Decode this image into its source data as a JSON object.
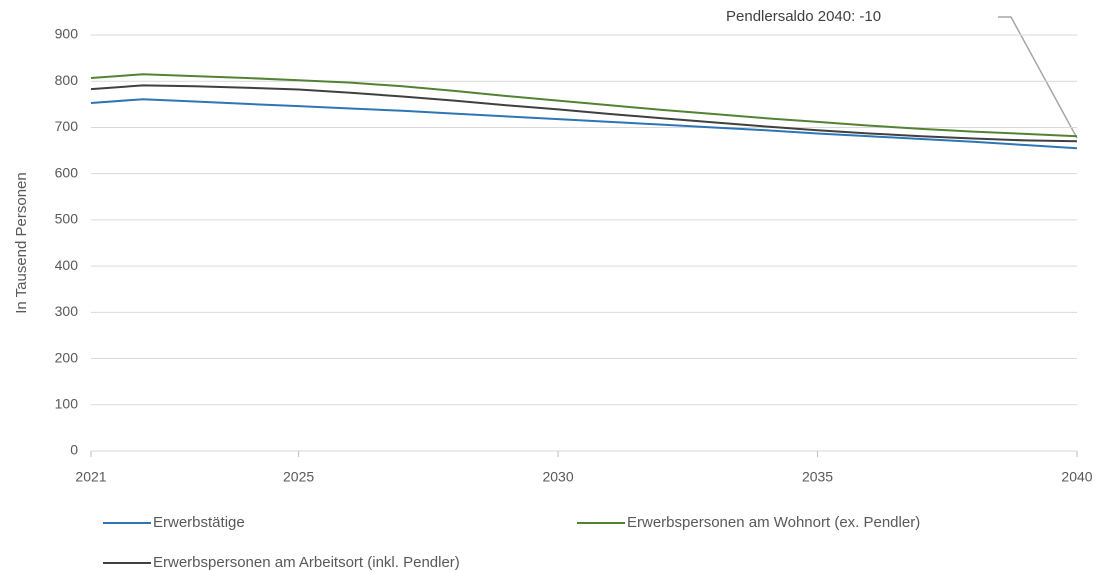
{
  "chart_data": {
    "type": "line",
    "y_label": "In Tausend Personen",
    "annotation": "Pendlersaldo 2040: -10",
    "x": [
      2021,
      2022,
      2023,
      2024,
      2025,
      2026,
      2027,
      2028,
      2029,
      2030,
      2031,
      2032,
      2033,
      2034,
      2035,
      2036,
      2037,
      2038,
      2039,
      2040
    ],
    "xlim": [
      2021,
      2040
    ],
    "xticks": [
      2021,
      2025,
      2030,
      2035,
      2040
    ],
    "ylim": [
      0,
      900
    ],
    "yticks": [
      0,
      100,
      200,
      300,
      400,
      500,
      600,
      700,
      800,
      900
    ],
    "grid": true,
    "series": [
      {
        "name": "Erwerbstätige",
        "color": "#2e75b6",
        "values": [
          753,
          761,
          756,
          751,
          746,
          741,
          736,
          730,
          724,
          718,
          712,
          706,
          700,
          694,
          687,
          681,
          675,
          669,
          662,
          655
        ]
      },
      {
        "name": "Erwerbspersonen am Wohnort (ex. Pendler)",
        "color": "#548235",
        "values": [
          807,
          815,
          811,
          807,
          802,
          797,
          789,
          779,
          768,
          758,
          748,
          738,
          729,
          720,
          712,
          704,
          697,
          691,
          686,
          681
        ]
      },
      {
        "name": "Erwerbspersonen am Arbeitsort (inkl. Pendler)",
        "color": "#404040",
        "values": [
          783,
          791,
          789,
          786,
          782,
          775,
          767,
          758,
          748,
          739,
          729,
          720,
          711,
          702,
          694,
          687,
          681,
          676,
          672,
          670
        ]
      }
    ]
  }
}
